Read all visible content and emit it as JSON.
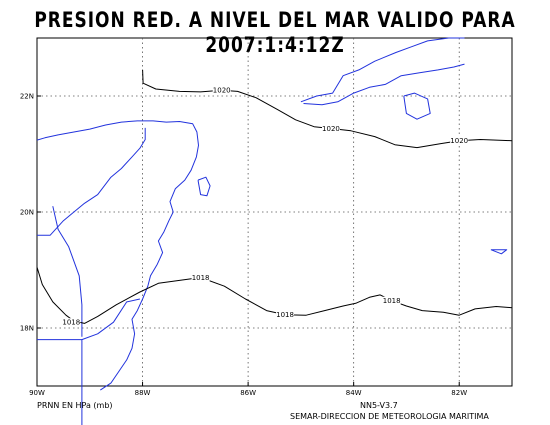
{
  "title": "PRESION RED. A NIVEL DEL MAR VALIDO PARA 2007:1:4:12Z",
  "footer": {
    "units": "PRNN EN HPa (mb)",
    "version": "NN5-V3.7",
    "credit": "SEMAR-DIRECCION DE METEOROLOGIA MARITIMA"
  },
  "map": {
    "lon_range": [
      -90,
      -81
    ],
    "lat_range": [
      17,
      23
    ],
    "x_ticks": [
      {
        "lon": -90,
        "label": "90W"
      },
      {
        "lon": -88,
        "label": "88W"
      },
      {
        "lon": -86,
        "label": "86W"
      },
      {
        "lon": -84,
        "label": "84W"
      },
      {
        "lon": -82,
        "label": "82W"
      }
    ],
    "y_ticks": [
      {
        "lat": 22,
        "label": "22N"
      },
      {
        "lat": 20,
        "label": "20N"
      },
      {
        "lat": 18,
        "label": "18N"
      }
    ],
    "grid": true,
    "colors": {
      "coast": "#2233dd",
      "contour": "#000000",
      "grid": "#555555"
    }
  },
  "isobars": [
    {
      "value": 1020,
      "labels": [
        {
          "text": "1020",
          "lon": -86.5,
          "lat": 22.1
        },
        {
          "text": "1020",
          "lon": -84.43,
          "lat": 21.44
        },
        {
          "text": "1020",
          "lon": -82.0,
          "lat": 21.23
        }
      ],
      "points": [
        [
          -88,
          22.45
        ],
        [
          -87.99,
          22.22
        ],
        [
          -87.75,
          22.12
        ],
        [
          -87.3,
          22.08
        ],
        [
          -86.9,
          22.07
        ],
        [
          -86.5,
          22.1
        ],
        [
          -86.2,
          22.08
        ],
        [
          -85.85,
          21.97
        ],
        [
          -85.45,
          21.77
        ],
        [
          -85.1,
          21.59
        ],
        [
          -84.75,
          21.47
        ],
        [
          -84.43,
          21.44
        ],
        [
          -84.05,
          21.4
        ],
        [
          -83.6,
          21.3
        ],
        [
          -83.22,
          21.16
        ],
        [
          -82.8,
          21.11
        ],
        [
          -82.35,
          21.18
        ],
        [
          -82.0,
          21.23
        ],
        [
          -81.6,
          21.25
        ],
        [
          -81.0,
          21.23
        ]
      ]
    },
    {
      "value": 1018,
      "labels": [
        {
          "text": "1018",
          "lon": -86.9,
          "lat": 18.87
        },
        {
          "text": "1018",
          "lon": -85.3,
          "lat": 18.23
        },
        {
          "text": "1018",
          "lon": -83.28,
          "lat": 18.47
        },
        {
          "text": "1018",
          "lon": -89.35,
          "lat": 18.1
        }
      ],
      "points": [
        [
          -90,
          19.05
        ],
        [
          -89.9,
          18.75
        ],
        [
          -89.7,
          18.45
        ],
        [
          -89.45,
          18.22
        ],
        [
          -89.3,
          18.12
        ],
        [
          -89.1,
          18.08
        ],
        [
          -88.85,
          18.2
        ],
        [
          -88.5,
          18.4
        ],
        [
          -88.05,
          18.62
        ],
        [
          -87.7,
          18.77
        ],
        [
          -87.3,
          18.82
        ],
        [
          -86.9,
          18.87
        ],
        [
          -86.45,
          18.72
        ],
        [
          -86.05,
          18.5
        ],
        [
          -85.65,
          18.3
        ],
        [
          -85.3,
          18.23
        ],
        [
          -84.9,
          18.22
        ],
        [
          -84.55,
          18.3
        ],
        [
          -84.2,
          18.38
        ],
        [
          -83.95,
          18.43
        ],
        [
          -83.7,
          18.53
        ],
        [
          -83.5,
          18.57
        ],
        [
          -83.28,
          18.47
        ],
        [
          -83.0,
          18.38
        ],
        [
          -82.7,
          18.3
        ],
        [
          -82.3,
          18.27
        ],
        [
          -82.0,
          18.22
        ],
        [
          -81.7,
          18.33
        ],
        [
          -81.3,
          18.37
        ],
        [
          -81.0,
          18.35
        ]
      ]
    }
  ],
  "coast": {
    "yucatan": [
      [
        -90,
        21.24
      ],
      [
        -89.85,
        21.28
      ],
      [
        -89.6,
        21.33
      ],
      [
        -89.3,
        21.38
      ],
      [
        -89.0,
        21.43
      ],
      [
        -88.7,
        21.5
      ],
      [
        -88.4,
        21.55
      ],
      [
        -88.1,
        21.57
      ],
      [
        -87.8,
        21.57
      ],
      [
        -87.55,
        21.55
      ],
      [
        -87.3,
        21.56
      ],
      [
        -87.05,
        21.52
      ],
      [
        -86.97,
        21.38
      ],
      [
        -86.94,
        21.15
      ],
      [
        -86.98,
        20.95
      ],
      [
        -87.08,
        20.72
      ],
      [
        -87.2,
        20.55
      ],
      [
        -87.38,
        20.4
      ],
      [
        -87.48,
        20.18
      ],
      [
        -87.42,
        20.0
      ],
      [
        -87.5,
        19.85
      ],
      [
        -87.6,
        19.65
      ],
      [
        -87.7,
        19.5
      ],
      [
        -87.62,
        19.3
      ],
      [
        -87.72,
        19.1
      ],
      [
        -87.85,
        18.9
      ],
      [
        -87.9,
        18.72
      ],
      [
        -88.0,
        18.5
      ],
      [
        -88.1,
        18.3
      ],
      [
        -88.2,
        18.15
      ],
      [
        -88.15,
        17.9
      ],
      [
        -88.2,
        17.65
      ],
      [
        -88.3,
        17.45
      ],
      [
        -88.45,
        17.25
      ],
      [
        -88.6,
        17.05
      ],
      [
        -88.8,
        16.93
      ]
    ],
    "inner_border_mx": [
      [
        -90,
        19.6
      ],
      [
        -89.75,
        19.6
      ],
      [
        -89.5,
        19.85
      ],
      [
        -89.3,
        20.0
      ],
      [
        -89.1,
        20.15
      ],
      [
        -88.85,
        20.3
      ],
      [
        -88.6,
        20.6
      ],
      [
        -88.4,
        20.75
      ],
      [
        -88.2,
        20.95
      ],
      [
        -88.05,
        21.1
      ],
      [
        -87.95,
        21.25
      ],
      [
        -87.95,
        21.45
      ]
    ],
    "border_mx_guat": [
      [
        -89.15,
        17.85
      ],
      [
        -89.15,
        18.4
      ],
      [
        -89.2,
        18.9
      ],
      [
        -89.4,
        19.4
      ],
      [
        -89.6,
        19.7
      ],
      [
        -89.7,
        20.1
      ]
    ],
    "border_guat_bel": [
      [
        -89.15,
        16.0
      ],
      [
        -89.15,
        17.8
      ],
      [
        -88.85,
        17.9
      ],
      [
        -88.55,
        18.1
      ],
      [
        -88.3,
        18.45
      ],
      [
        -88.05,
        18.5
      ]
    ],
    "guat_line": [
      [
        -90,
        17.8
      ],
      [
        -89.15,
        17.8
      ]
    ],
    "cozumel": [
      [
        -86.95,
        20.55
      ],
      [
        -86.8,
        20.6
      ],
      [
        -86.72,
        20.45
      ],
      [
        -86.78,
        20.28
      ],
      [
        -86.9,
        20.3
      ],
      [
        -86.95,
        20.55
      ]
    ],
    "cuba": [
      [
        -85.0,
        21.9
      ],
      [
        -84.7,
        22.0
      ],
      [
        -84.4,
        22.05
      ],
      [
        -84.2,
        22.35
      ],
      [
        -83.9,
        22.45
      ],
      [
        -83.6,
        22.6
      ],
      [
        -83.2,
        22.75
      ],
      [
        -82.9,
        22.85
      ],
      [
        -82.6,
        22.95
      ],
      [
        -82.2,
        23.0
      ],
      [
        -81.9,
        23.0
      ]
    ],
    "cuba_south": [
      [
        -84.95,
        21.87
      ],
      [
        -84.6,
        21.85
      ],
      [
        -84.3,
        21.9
      ],
      [
        -84.0,
        22.05
      ],
      [
        -83.7,
        22.15
      ],
      [
        -83.4,
        22.2
      ],
      [
        -83.1,
        22.35
      ],
      [
        -82.75,
        22.4
      ],
      [
        -82.4,
        22.45
      ],
      [
        -82.1,
        22.5
      ],
      [
        -81.9,
        22.55
      ]
    ],
    "isla_juventud": [
      [
        -83.05,
        22.0
      ],
      [
        -82.85,
        22.05
      ],
      [
        -82.6,
        21.95
      ],
      [
        -82.55,
        21.7
      ],
      [
        -82.8,
        21.6
      ],
      [
        -83.0,
        21.7
      ],
      [
        -83.05,
        22.0
      ]
    ],
    "caymans": [
      [
        -81.4,
        19.35
      ],
      [
        -81.1,
        19.35
      ],
      [
        -81.2,
        19.28
      ],
      [
        -81.4,
        19.35
      ]
    ]
  }
}
